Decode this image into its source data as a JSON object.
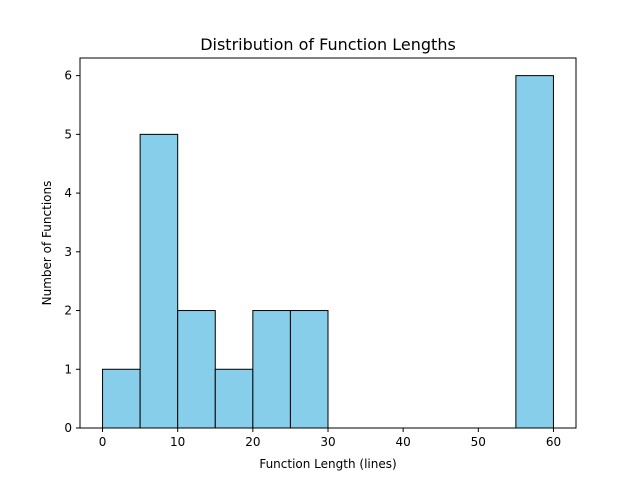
{
  "chart_data": {
    "type": "bar",
    "title": "Distribution of Function Lengths",
    "xlabel": "Function Length (lines)",
    "ylabel": "Number of Functions",
    "bin_edges": [
      0,
      5,
      10,
      15,
      20,
      25,
      30,
      35,
      40,
      45,
      50,
      55,
      60
    ],
    "counts": [
      1,
      5,
      2,
      1,
      2,
      2,
      0,
      0,
      0,
      0,
      0,
      6
    ],
    "xlim": [
      -3,
      63
    ],
    "ylim": [
      0,
      6.3
    ],
    "xticks": [
      0,
      10,
      20,
      30,
      40,
      50,
      60
    ],
    "yticks": [
      0,
      1,
      2,
      3,
      4,
      5,
      6
    ],
    "bar_color": "#87CEEB",
    "edge_color": "#000000",
    "grid": false
  }
}
